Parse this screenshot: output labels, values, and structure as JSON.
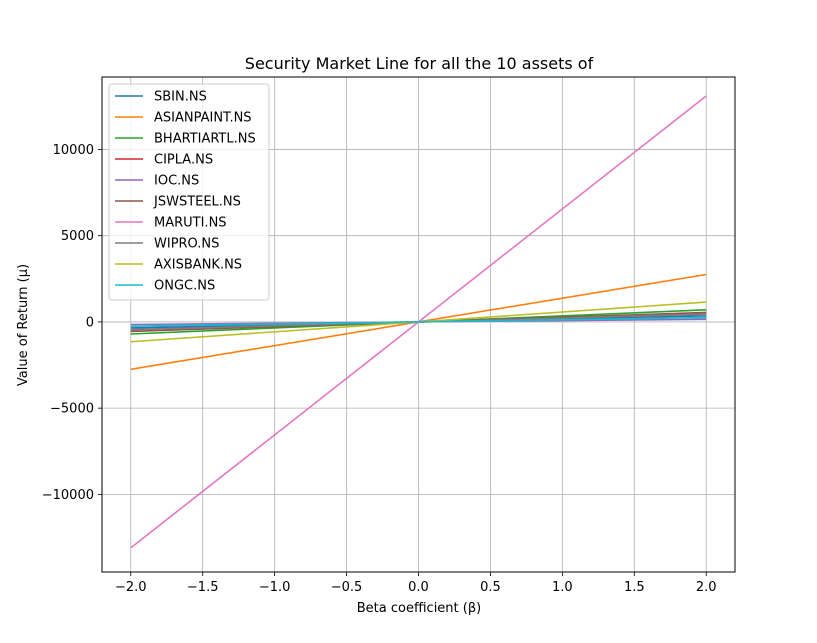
{
  "chart_data": {
    "type": "line",
    "title": "Security Market Line for all the 10 assets of",
    "xlabel": "Beta coefficient (β)",
    "ylabel": "Value of Return (µ)",
    "xlim": [
      -2.2,
      2.2
    ],
    "ylim": [
      -14500,
      14200
    ],
    "x": [
      -2.0,
      2.0
    ],
    "xticks": [
      -2.0,
      -1.5,
      -1.0,
      -0.5,
      0.0,
      0.5,
      1.0,
      1.5,
      2.0
    ],
    "xtick_labels": [
      "−2.0",
      "−1.5",
      "−1.0",
      "−0.5",
      "0.0",
      "0.5",
      "1.0",
      "1.5",
      "2.0"
    ],
    "yticks": [
      -10000,
      -5000,
      0,
      5000,
      10000
    ],
    "ytick_labels": [
      "−10000",
      "−5000",
      "0",
      "5000",
      "10000"
    ],
    "grid": true,
    "legend_position": "top-left",
    "series": [
      {
        "name": "SBIN.NS",
        "color": "#1f77b4",
        "values": [
          -350,
          350
        ]
      },
      {
        "name": "ASIANPAINT.NS",
        "color": "#ff7f0e",
        "values": [
          -2750,
          2750
        ]
      },
      {
        "name": "BHARTIARTL.NS",
        "color": "#2ca02c",
        "values": [
          -700,
          700
        ]
      },
      {
        "name": "CIPLA.NS",
        "color": "#d62728",
        "values": [
          -450,
          450
        ]
      },
      {
        "name": "IOC.NS",
        "color": "#9467bd",
        "values": [
          -150,
          150
        ]
      },
      {
        "name": "JSWSTEEL.NS",
        "color": "#8c564b",
        "values": [
          -550,
          550
        ]
      },
      {
        "name": "MARUTI.NS",
        "color": "#e377c2",
        "values": [
          -13100,
          13100
        ]
      },
      {
        "name": "WIPRO.NS",
        "color": "#7f7f7f",
        "values": [
          -450,
          450
        ]
      },
      {
        "name": "AXISBANK.NS",
        "color": "#bcbd22",
        "values": [
          -1150,
          1150
        ]
      },
      {
        "name": "ONGC.NS",
        "color": "#17becf",
        "values": [
          -250,
          250
        ]
      }
    ]
  }
}
